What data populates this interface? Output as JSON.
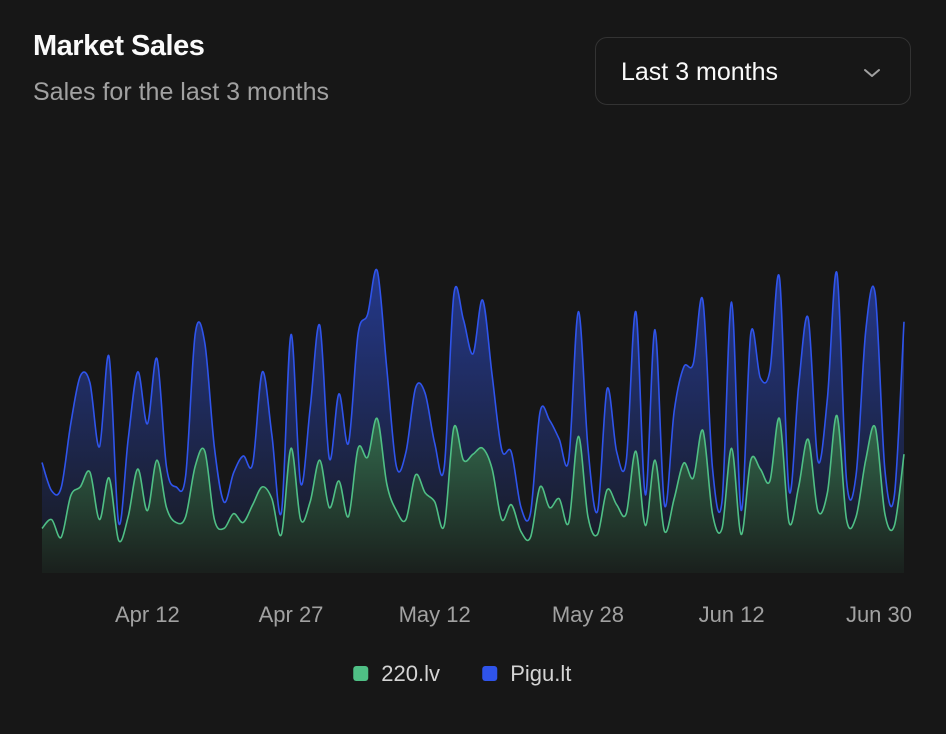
{
  "chart_data": {
    "type": "area",
    "stacked": true,
    "title": "Market Sales",
    "subtitle": "Sales for the last 3 months",
    "range_select": "Last 3 months",
    "categories": [
      null,
      null,
      null,
      null,
      null,
      null,
      null,
      null,
      null,
      null,
      null,
      "Apr 12",
      null,
      null,
      null,
      null,
      null,
      null,
      null,
      null,
      null,
      null,
      null,
      null,
      null,
      null,
      "Apr 27",
      null,
      null,
      null,
      null,
      null,
      null,
      null,
      null,
      null,
      null,
      null,
      null,
      null,
      null,
      "May 12",
      null,
      null,
      null,
      null,
      null,
      null,
      null,
      null,
      null,
      null,
      null,
      null,
      null,
      null,
      null,
      "May 28",
      null,
      null,
      null,
      null,
      null,
      null,
      null,
      null,
      null,
      null,
      null,
      null,
      null,
      null,
      "Jun 12",
      null,
      null,
      null,
      null,
      null,
      null,
      null,
      null,
      null,
      null,
      null,
      null,
      null,
      null,
      null,
      null,
      null,
      "Jun 30"
    ],
    "series": [
      {
        "name": "220.lv",
        "color": "#4fbf85",
        "values": [
          150,
          180,
          120,
          260,
          290,
          340,
          180,
          320,
          110,
          190,
          350,
          210,
          380,
          220,
          170,
          190,
          360,
          410,
          180,
          150,
          200,
          170,
          230,
          290,
          250,
          130,
          420,
          180,
          240,
          380,
          220,
          310,
          190,
          420,
          390,
          520,
          300,
          210,
          180,
          330,
          270,
          240,
          160,
          490,
          380,
          400,
          420,
          350,
          180,
          230,
          140,
          120,
          290,
          220,
          250,
          170,
          460,
          190,
          130,
          280,
          230,
          200,
          410,
          160,
          380,
          140,
          250,
          370,
          320,
          480,
          200,
          150,
          420,
          130,
          380,
          350,
          310,
          520,
          170,
          290,
          450,
          210,
          270,
          530,
          180,
          190,
          380,
          490,
          200,
          160,
          400
        ]
      },
      {
        "name": "Pigu.lt",
        "color": "#2f54eb",
        "values": [
          222,
          97,
          167,
          242,
          373,
          301,
          245,
          409,
          59,
          261,
          327,
          292,
          342,
          137,
          120,
          138,
          446,
          364,
          243,
          89,
          137,
          224,
          138,
          387,
          215,
          75,
          383,
          122,
          315,
          454,
          165,
          293,
          247,
          385,
          481,
          498,
          388,
          149,
          227,
          293,
          335,
          197,
          197,
          448,
          473,
          338,
          499,
          315,
          235,
          177,
          82,
          81,
          252,
          294,
          201,
          213,
          420,
          233,
          78,
          340,
          178,
          178,
          470,
          103,
          439,
          88,
          294,
          323,
          385,
          438,
          155,
          92,
          492,
          81,
          426,
          307,
          371,
          475,
          107,
          341,
          408,
          169,
          317,
          480,
          132,
          141,
          434,
          448,
          149,
          103,
          446
        ]
      }
    ]
  }
}
